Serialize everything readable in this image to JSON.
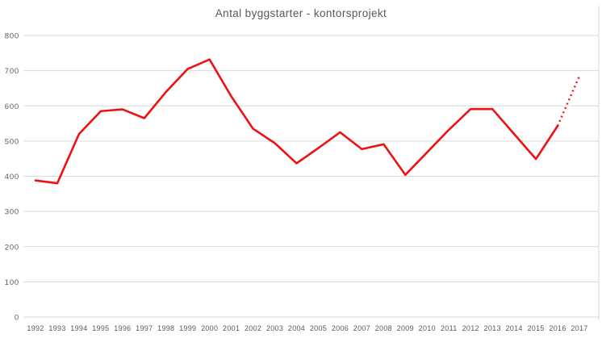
{
  "title": "Antal byggstarter - kontorsprojekt",
  "colors": {
    "line": "#ee1111",
    "grid": "#d9d9d9",
    "border": "#d9d9d9",
    "text": "#58585a",
    "background": "#ffffff"
  },
  "chart_data": {
    "type": "line",
    "title": "Antal byggstarter - kontorsprojekt",
    "x": [
      1992,
      1993,
      1994,
      1995,
      1996,
      1997,
      1998,
      1999,
      2000,
      2001,
      2002,
      2003,
      2004,
      2005,
      2006,
      2007,
      2008,
      2009,
      2010,
      2011,
      2012,
      2013,
      2014,
      2015,
      2016,
      2017
    ],
    "series": [
      {
        "name": "Antal byggstarter kontorsprojekt",
        "values": [
          388,
          380,
          520,
          585,
          590,
          565,
          640,
          705,
          732,
          627,
          535,
          494,
          437,
          480,
          525,
          477,
          491,
          404,
          468,
          532,
          591,
          591,
          520,
          449,
          543,
          685
        ]
      }
    ],
    "solid_segment": {
      "from": 1992,
      "to": 2016
    },
    "dotted_segment": {
      "from": 2016,
      "to": 2017,
      "note": "forecast shown as dotted line"
    },
    "xlabel": "",
    "ylabel": "",
    "ylim": [
      0,
      800
    ],
    "yticks": [
      0,
      100,
      200,
      300,
      400,
      500,
      600,
      700,
      800
    ],
    "grid": true,
    "legend": "none"
  }
}
